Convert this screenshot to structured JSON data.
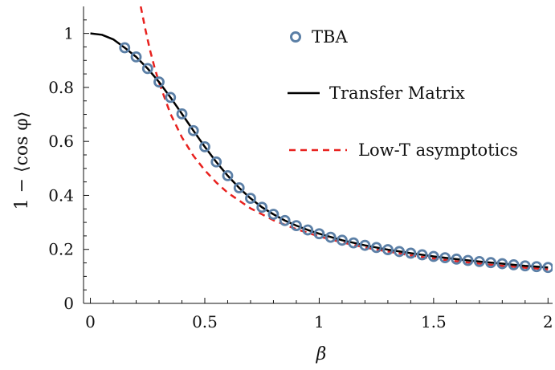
{
  "chart_data": {
    "type": "line",
    "title": "",
    "xlabel": "β",
    "ylabel": "1 − ⟨cos φ⟩",
    "xlim": [
      -0.03,
      2.02
    ],
    "ylim": [
      0,
      1.1
    ],
    "x_ticks": [
      0,
      0.5,
      1,
      1.5,
      2
    ],
    "x_tick_labels": [
      "0",
      "0.5",
      "1",
      "1.5",
      "2"
    ],
    "y_ticks": [
      0,
      0.2,
      0.4,
      0.6,
      0.8,
      1
    ],
    "y_tick_labels": [
      "0",
      "0.2",
      "0.4",
      "0.6",
      "0.8",
      "1"
    ],
    "legend_position": "top-right",
    "grid": false,
    "series": [
      {
        "name": "TBA",
        "style": "markers",
        "color": "#5b7fa6",
        "x": [
          0.15,
          0.2,
          0.25,
          0.3,
          0.35,
          0.4,
          0.45,
          0.5,
          0.55,
          0.6,
          0.65,
          0.7,
          0.75,
          0.8,
          0.85,
          0.9,
          0.95,
          1.0,
          1.05,
          1.1,
          1.15,
          1.2,
          1.25,
          1.3,
          1.35,
          1.4,
          1.45,
          1.5,
          1.55,
          1.6,
          1.65,
          1.7,
          1.75,
          1.8,
          1.85,
          1.9,
          1.95,
          2.0
        ],
        "y": [
          0.947,
          0.913,
          0.87,
          0.82,
          0.763,
          0.702,
          0.64,
          0.58,
          0.524,
          0.473,
          0.428,
          0.389,
          0.356,
          0.33,
          0.307,
          0.288,
          0.272,
          0.258,
          0.245,
          0.234,
          0.224,
          0.215,
          0.207,
          0.199,
          0.192,
          0.186,
          0.18,
          0.174,
          0.169,
          0.164,
          0.159,
          0.155,
          0.151,
          0.147,
          0.143,
          0.139,
          0.136,
          0.133
        ]
      },
      {
        "name": "Transfer Matrix",
        "style": "solid",
        "color": "#000000",
        "x": [
          0,
          0.05,
          0.1,
          0.15,
          0.2,
          0.25,
          0.3,
          0.35,
          0.4,
          0.45,
          0.5,
          0.55,
          0.6,
          0.65,
          0.7,
          0.75,
          0.8,
          0.85,
          0.9,
          0.95,
          1.0,
          1.1,
          1.2,
          1.3,
          1.4,
          1.5,
          1.6,
          1.7,
          1.8,
          1.9,
          2.0
        ],
        "y": [
          1.0,
          0.995,
          0.978,
          0.947,
          0.913,
          0.87,
          0.82,
          0.763,
          0.702,
          0.64,
          0.58,
          0.524,
          0.473,
          0.428,
          0.389,
          0.356,
          0.33,
          0.307,
          0.288,
          0.272,
          0.258,
          0.234,
          0.215,
          0.199,
          0.186,
          0.174,
          0.164,
          0.155,
          0.147,
          0.139,
          0.133
        ]
      },
      {
        "name": "Low-T asymptotics",
        "style": "dashed",
        "color": "#e8211e",
        "x": [
          0.22,
          0.24,
          0.26,
          0.28,
          0.3,
          0.35,
          0.4,
          0.45,
          0.5,
          0.55,
          0.6,
          0.7,
          0.8,
          0.9,
          1.0,
          1.1,
          1.2,
          1.3,
          1.4,
          1.5,
          1.6,
          1.7,
          1.8,
          1.9,
          2.0
        ],
        "y": [
          1.1,
          1.016,
          0.94,
          0.875,
          0.818,
          0.702,
          0.615,
          0.547,
          0.493,
          0.448,
          0.41,
          0.352,
          0.308,
          0.275,
          0.248,
          0.226,
          0.207,
          0.192,
          0.178,
          0.166,
          0.156,
          0.147,
          0.139,
          0.132,
          0.126
        ]
      }
    ]
  }
}
